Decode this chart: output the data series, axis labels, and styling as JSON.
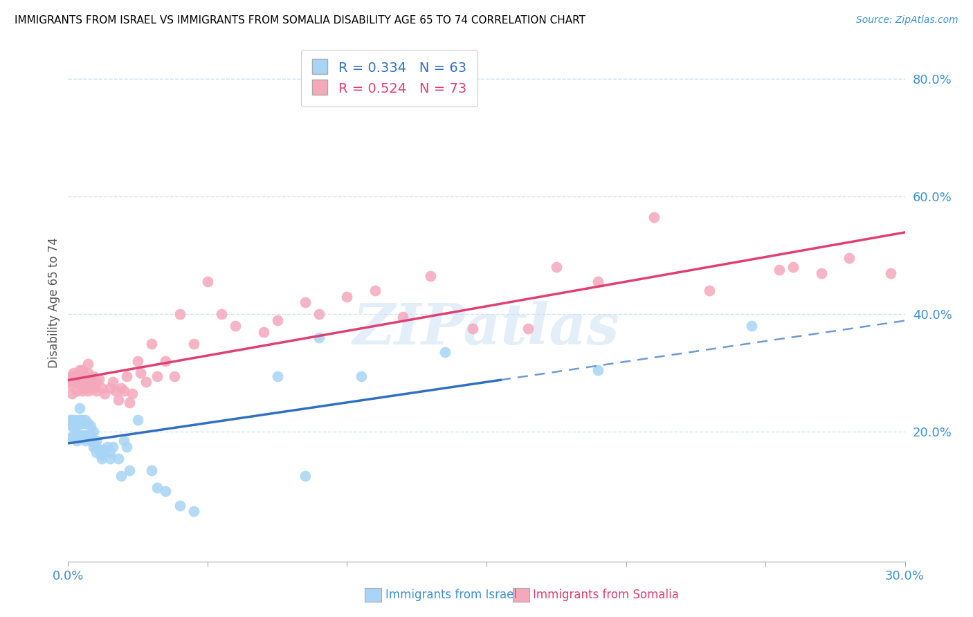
{
  "title": "IMMIGRANTS FROM ISRAEL VS IMMIGRANTS FROM SOMALIA DISABILITY AGE 65 TO 74 CORRELATION CHART",
  "source": "Source: ZipAtlas.com",
  "ylabel": "Disability Age 65 to 74",
  "legend_label_1": "Immigrants from Israel",
  "legend_label_2": "Immigrants from Somalia",
  "R1": 0.334,
  "N1": 63,
  "R2": 0.524,
  "N2": 73,
  "color_israel": "#A8D4F5",
  "color_somalia": "#F5A8BC",
  "color_israel_line": "#3070C0",
  "color_somalia_line": "#E04070",
  "color_axis_text": "#4090D0",
  "color_grid": "#D0E4F5",
  "xlim": [
    0.0,
    0.3
  ],
  "ylim": [
    -0.02,
    0.86
  ],
  "y_ticks_right": [
    0.2,
    0.4,
    0.6,
    0.8
  ],
  "watermark": "ZIPatlas",
  "israel_x": [
    0.0008,
    0.001,
    0.0012,
    0.0015,
    0.0015,
    0.002,
    0.002,
    0.002,
    0.0025,
    0.003,
    0.003,
    0.003,
    0.003,
    0.004,
    0.004,
    0.004,
    0.004,
    0.005,
    0.005,
    0.005,
    0.005,
    0.006,
    0.006,
    0.006,
    0.006,
    0.006,
    0.007,
    0.007,
    0.008,
    0.008,
    0.008,
    0.009,
    0.009,
    0.009,
    0.01,
    0.01,
    0.01,
    0.011,
    0.012,
    0.012,
    0.013,
    0.014,
    0.015,
    0.015,
    0.016,
    0.018,
    0.019,
    0.02,
    0.021,
    0.022,
    0.025,
    0.03,
    0.032,
    0.035,
    0.04,
    0.045,
    0.075,
    0.085,
    0.09,
    0.105,
    0.135,
    0.19,
    0.245
  ],
  "israel_y": [
    0.19,
    0.22,
    0.19,
    0.21,
    0.22,
    0.19,
    0.195,
    0.21,
    0.22,
    0.195,
    0.21,
    0.195,
    0.185,
    0.215,
    0.22,
    0.215,
    0.24,
    0.215,
    0.22,
    0.19,
    0.195,
    0.22,
    0.215,
    0.215,
    0.195,
    0.185,
    0.28,
    0.215,
    0.21,
    0.195,
    0.185,
    0.2,
    0.185,
    0.175,
    0.175,
    0.185,
    0.165,
    0.17,
    0.16,
    0.155,
    0.17,
    0.175,
    0.165,
    0.155,
    0.175,
    0.155,
    0.125,
    0.185,
    0.175,
    0.135,
    0.22,
    0.135,
    0.105,
    0.1,
    0.075,
    0.065,
    0.295,
    0.125,
    0.36,
    0.295,
    0.335,
    0.305,
    0.38
  ],
  "somalia_x": [
    0.0008,
    0.001,
    0.0012,
    0.0015,
    0.0015,
    0.002,
    0.002,
    0.002,
    0.0025,
    0.003,
    0.003,
    0.003,
    0.004,
    0.004,
    0.004,
    0.005,
    0.005,
    0.005,
    0.006,
    0.006,
    0.006,
    0.007,
    0.007,
    0.007,
    0.008,
    0.008,
    0.009,
    0.009,
    0.01,
    0.01,
    0.011,
    0.012,
    0.013,
    0.015,
    0.016,
    0.017,
    0.018,
    0.019,
    0.02,
    0.021,
    0.022,
    0.023,
    0.025,
    0.026,
    0.028,
    0.03,
    0.032,
    0.035,
    0.038,
    0.04,
    0.045,
    0.05,
    0.055,
    0.06,
    0.07,
    0.075,
    0.085,
    0.09,
    0.1,
    0.11,
    0.12,
    0.13,
    0.145,
    0.165,
    0.175,
    0.19,
    0.21,
    0.23,
    0.255,
    0.26,
    0.27,
    0.28,
    0.295
  ],
  "somalia_y": [
    0.285,
    0.28,
    0.295,
    0.265,
    0.29,
    0.285,
    0.295,
    0.3,
    0.29,
    0.285,
    0.295,
    0.27,
    0.28,
    0.295,
    0.305,
    0.29,
    0.305,
    0.27,
    0.295,
    0.285,
    0.275,
    0.3,
    0.315,
    0.27,
    0.275,
    0.285,
    0.275,
    0.295,
    0.27,
    0.285,
    0.29,
    0.275,
    0.265,
    0.275,
    0.285,
    0.27,
    0.255,
    0.275,
    0.27,
    0.295,
    0.25,
    0.265,
    0.32,
    0.3,
    0.285,
    0.35,
    0.295,
    0.32,
    0.295,
    0.4,
    0.35,
    0.455,
    0.4,
    0.38,
    0.37,
    0.39,
    0.42,
    0.4,
    0.43,
    0.44,
    0.395,
    0.465,
    0.375,
    0.375,
    0.48,
    0.455,
    0.565,
    0.44,
    0.475,
    0.48,
    0.47,
    0.495,
    0.47
  ]
}
